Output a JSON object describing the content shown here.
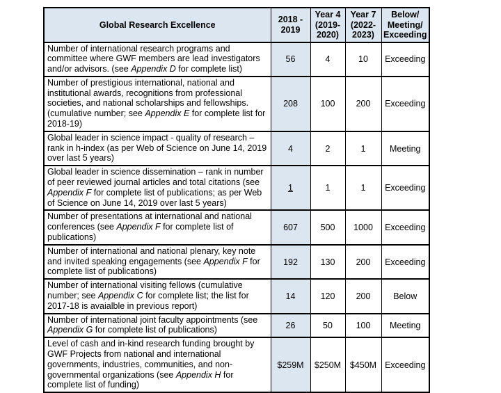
{
  "colors": {
    "header_fill": "#dce6f1",
    "first_data_column_fill": "#dce6f1",
    "border": "#000000",
    "text": "#000000",
    "page_background": "#ffffff"
  },
  "table": {
    "header": {
      "title": "Global Research Excellence",
      "columns": [
        "2018 -\n2019",
        "Year 4\n(2019-\n2020)",
        "Year 7\n(2022-\n2023)",
        "Below/\nMeeting/\nExceeding"
      ]
    },
    "rows": [
      {
        "description": [
          {
            "text": "Number of international research programs and committee where GWF members are lead investigators and/or advisors. (see ",
            "italic": false
          },
          {
            "text": "Appendix D",
            "italic": true
          },
          {
            "text": " for complete list)",
            "italic": false
          }
        ],
        "values": [
          {
            "text": "56",
            "underline": false
          },
          {
            "text": "4",
            "underline": false
          },
          {
            "text": "10",
            "underline": false
          },
          {
            "text": "Exceeding",
            "underline": false
          }
        ]
      },
      {
        "description": [
          {
            "text": "Number of prestigious international, national and institutional awards, recognitions from professional societies, and national scholarships and fellowships. (cumulative number; see ",
            "italic": false
          },
          {
            "text": "Appendix E",
            "italic": true
          },
          {
            "text": " for complete list for 2018-19)",
            "italic": false
          }
        ],
        "values": [
          {
            "text": "208",
            "underline": false
          },
          {
            "text": "100",
            "underline": false
          },
          {
            "text": "200",
            "underline": false
          },
          {
            "text": "Exceeding",
            "underline": false
          }
        ]
      },
      {
        "description": [
          {
            "text": "Global leader in science impact - quality of research – rank in h-index (as per Web of Science on June 14, 2019 over last 5 years)",
            "italic": false
          }
        ],
        "values": [
          {
            "text": "4",
            "underline": false
          },
          {
            "text": "2",
            "underline": false
          },
          {
            "text": "1",
            "underline": false
          },
          {
            "text": "Meeting",
            "underline": false
          }
        ]
      },
      {
        "description": [
          {
            "text": "Global leader in science dissemination – rank in number of peer reviewed journal articles and total citations (see ",
            "italic": false
          },
          {
            "text": "Appendix F",
            "italic": true
          },
          {
            "text": " for complete list of publications; as per Web of Science on June 14, 2019 over last 5 years)",
            "italic": false
          }
        ],
        "values": [
          {
            "text": "1",
            "underline": true
          },
          {
            "text": "1",
            "underline": false
          },
          {
            "text": "1",
            "underline": false
          },
          {
            "text": "Exceeding",
            "underline": false
          }
        ]
      },
      {
        "description": [
          {
            "text": "Number of presentations at international and national conferences (see ",
            "italic": false
          },
          {
            "text": "Appendix F",
            "italic": true
          },
          {
            "text": " for complete list of publications)",
            "italic": false
          }
        ],
        "values": [
          {
            "text": "607",
            "underline": false
          },
          {
            "text": "500",
            "underline": false
          },
          {
            "text": "1000",
            "underline": false
          },
          {
            "text": "Exceeding",
            "underline": false
          }
        ]
      },
      {
        "description": [
          {
            "text": "Number of international and national plenary, key note and invited speaking engagements (see ",
            "italic": false
          },
          {
            "text": "Appendix F",
            "italic": true
          },
          {
            "text": " for complete list of publications)",
            "italic": false
          }
        ],
        "values": [
          {
            "text": "192",
            "underline": false
          },
          {
            "text": "130",
            "underline": false
          },
          {
            "text": "200",
            "underline": false
          },
          {
            "text": "Exceeding",
            "underline": false
          }
        ]
      },
      {
        "description": [
          {
            "text": "Number of international visiting fellows (cumulative number; see ",
            "italic": false
          },
          {
            "text": "Appendix C",
            "italic": true
          },
          {
            "text": " for complete list; the list for 2017-18 is avaialble in previous report)",
            "italic": false
          }
        ],
        "values": [
          {
            "text": "14",
            "underline": false
          },
          {
            "text": "120",
            "underline": false
          },
          {
            "text": "200",
            "underline": false
          },
          {
            "text": "Below",
            "underline": false
          }
        ]
      },
      {
        "description": [
          {
            "text": "Number of international joint faculty appointments (see ",
            "italic": false
          },
          {
            "text": "Appendix G",
            "italic": true
          },
          {
            "text": " for complete list of publications)",
            "italic": false
          }
        ],
        "values": [
          {
            "text": "26",
            "underline": false
          },
          {
            "text": "50",
            "underline": false
          },
          {
            "text": "100",
            "underline": false
          },
          {
            "text": "Meeting",
            "underline": false
          }
        ]
      },
      {
        "description": [
          {
            "text": "Level of cash and in-kind research funding brought by GWF Projects from national and international governments, industries, communities, and non-governmental organizations (see ",
            "italic": false
          },
          {
            "text": "Appendix H",
            "italic": true
          },
          {
            "text": " for complete list of funding)",
            "italic": false
          }
        ],
        "values": [
          {
            "text": "$259M",
            "underline": false
          },
          {
            "text": "$250M",
            "underline": false
          },
          {
            "text": "$450M",
            "underline": false
          },
          {
            "text": "Exceeding",
            "underline": false
          }
        ]
      }
    ]
  }
}
